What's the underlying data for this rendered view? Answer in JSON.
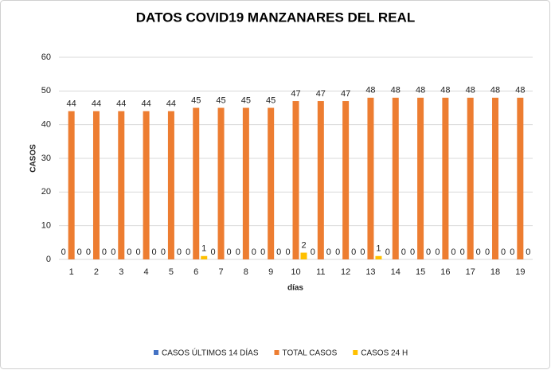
{
  "chart_data": {
    "type": "bar",
    "title": "DATOS COVID19 MANZANARES DEL REAL",
    "x_label": "días",
    "y_label": "CASOS",
    "categories": [
      "1",
      "2",
      "3",
      "4",
      "5",
      "6",
      "7",
      "8",
      "9",
      "10",
      "11",
      "12",
      "13",
      "14",
      "15",
      "16",
      "17",
      "18",
      "19"
    ],
    "series": [
      {
        "name": "CASOS ÚLTIMOS 14 DÍAS",
        "color": "#4472c4",
        "values": [
          0,
          0,
          0,
          0,
          0,
          0,
          0,
          0,
          0,
          0,
          0,
          0,
          0,
          0,
          0,
          0,
          0,
          0,
          0
        ]
      },
      {
        "name": "TOTAL CASOS",
        "color": "#ed7d31",
        "values": [
          44,
          44,
          44,
          44,
          44,
          45,
          45,
          45,
          45,
          47,
          47,
          47,
          48,
          48,
          48,
          48,
          48,
          48,
          48
        ]
      },
      {
        "name": "CASOS 24 H",
        "color": "#ffc000",
        "values": [
          0,
          0,
          0,
          0,
          0,
          1,
          0,
          0,
          0,
          2,
          0,
          0,
          1,
          0,
          0,
          0,
          0,
          0,
          0
        ]
      }
    ],
    "ylim": [
      0,
      60
    ],
    "yticks": [
      0,
      10,
      20,
      30,
      40,
      50,
      60
    ],
    "grid": true,
    "legend": "bottom"
  }
}
